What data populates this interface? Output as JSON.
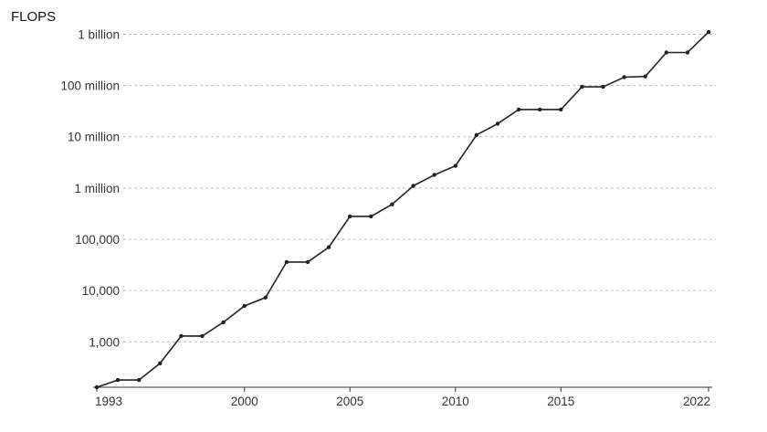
{
  "chart_data": {
    "type": "line",
    "title": "",
    "xlabel": "",
    "ylabel": "FLOPS",
    "yscale": "log",
    "ylim": [
      130,
      1200000000
    ],
    "xlim": [
      1993,
      2022
    ],
    "grid": "horizontal-dashed",
    "x_ticks": [
      {
        "value": 1993,
        "label": "1993"
      },
      {
        "value": 2000,
        "label": "2000"
      },
      {
        "value": 2005,
        "label": "2005"
      },
      {
        "value": 2010,
        "label": "2010"
      },
      {
        "value": 2015,
        "label": "2015"
      },
      {
        "value": 2022,
        "label": "2022"
      }
    ],
    "y_ticks": [
      {
        "value": 1000,
        "label": "1,000"
      },
      {
        "value": 10000,
        "label": "10,000"
      },
      {
        "value": 100000,
        "label": "100,000"
      },
      {
        "value": 1000000,
        "label": "1 million"
      },
      {
        "value": 10000000,
        "label": "10 million"
      },
      {
        "value": 100000000,
        "label": "100 million"
      },
      {
        "value": 1000000000,
        "label": "1 billion"
      }
    ],
    "series": [
      {
        "x": [
          1993,
          1994,
          1995,
          1996,
          1997,
          1998,
          1999,
          2000,
          2001,
          2002,
          2003,
          2004,
          2005,
          2006,
          2007,
          2008,
          2009,
          2010,
          2011,
          2012,
          2013,
          2014,
          2015,
          2016,
          2017,
          2018,
          2019,
          2020,
          2021,
          2022
        ],
        "y": [
          130,
          180,
          180,
          380,
          1300,
          1300,
          2400,
          5000,
          7300,
          36000,
          36000,
          70000,
          280000,
          280000,
          480000,
          1100000,
          1800000,
          2700000,
          10800000,
          18000000,
          34000000,
          34000000,
          34000000,
          94000000,
          94000000,
          145000000,
          150000000,
          440000000,
          440000000,
          1100000000
        ]
      }
    ]
  }
}
